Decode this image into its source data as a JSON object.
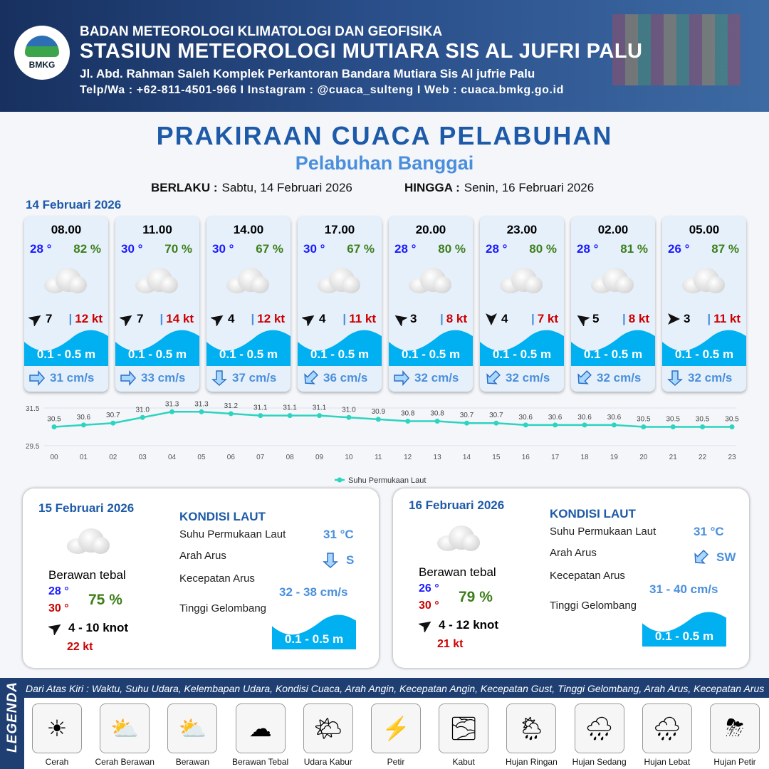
{
  "header": {
    "agency": "BADAN METEOROLOGI KLIMATOLOGI DAN GEOFISIKA",
    "station": "STASIUN METEOROLOGI MUTIARA SIS AL JUFRI PALU",
    "address": "Jl. Abd. Rahman Saleh Komplek Perkantoran Bandara Mutiara Sis Al jufrie Palu",
    "contact": "Telp/Wa : +62-811-4501-966  I  Instagram : @cuaca_sulteng  I  Web : cuaca.bmkg.go.id",
    "logo_text": "BMKG"
  },
  "title": "PRAKIRAAN CUACA PELABUHAN",
  "subtitle": "Pelabuhan Banggai",
  "validity": {
    "from_label": "BERLAKU :",
    "from": "Sabtu, 14 Februari 2026",
    "to_label": "HINGGA :",
    "to": "Senin, 16 Februari 2026"
  },
  "day1": {
    "date": "14 Februari 2026",
    "cards": [
      {
        "time": "08.00",
        "temp": "28 °",
        "rh": "82 %",
        "wind_dir_deg": -35,
        "wind": "7",
        "gust": "12 kt",
        "wave": "0.1 - 0.5 m",
        "cur_dir": "E",
        "cur_deg": 0,
        "current": "31 cm/s",
        "weather": "Berawan Tebal"
      },
      {
        "time": "11.00",
        "temp": "30 °",
        "rh": "70 %",
        "wind_dir_deg": -35,
        "wind": "7",
        "gust": "14 kt",
        "wave": "0.1 - 0.5 m",
        "cur_dir": "E",
        "cur_deg": 0,
        "current": "33 cm/s",
        "weather": "Berawan Tebal"
      },
      {
        "time": "14.00",
        "temp": "30 °",
        "rh": "67 %",
        "wind_dir_deg": -35,
        "wind": "4",
        "gust": "12 kt",
        "wave": "0.1 - 0.5 m",
        "cur_dir": "S",
        "cur_deg": 90,
        "current": "37 cm/s",
        "weather": "Berawan Tebal"
      },
      {
        "time": "17.00",
        "temp": "30 °",
        "rh": "67 %",
        "wind_dir_deg": -35,
        "wind": "4",
        "gust": "11 kt",
        "wave": "0.1 - 0.5 m",
        "cur_dir": "SW",
        "cur_deg": 135,
        "current": "36 cm/s",
        "weather": "Berawan Tebal"
      },
      {
        "time": "20.00",
        "temp": "28 °",
        "rh": "80 %",
        "wind_dir_deg": -145,
        "wind": "3",
        "gust": "8 kt",
        "wave": "0.1 - 0.5 m",
        "cur_dir": "E",
        "cur_deg": 0,
        "current": "32 cm/s",
        "weather": "Berawan Tebal"
      },
      {
        "time": "23.00",
        "temp": "28 °",
        "rh": "80 %",
        "wind_dir_deg": 90,
        "wind": "4",
        "gust": "7 kt",
        "wave": "0.1 - 0.5 m",
        "cur_dir": "SW",
        "cur_deg": 135,
        "current": "32 cm/s",
        "weather": "Berawan Tebal"
      },
      {
        "time": "02.00",
        "temp": "28 °",
        "rh": "81 %",
        "wind_dir_deg": -145,
        "wind": "5",
        "gust": "8 kt",
        "wave": "0.1 - 0.5 m",
        "cur_dir": "SW",
        "cur_deg": 135,
        "current": "32 cm/s",
        "weather": "Berawan Tebal"
      },
      {
        "time": "05.00",
        "temp": "26 °",
        "rh": "87 %",
        "wind_dir_deg": 0,
        "wind": "3",
        "gust": "11 kt",
        "wave": "0.1 - 0.5 m",
        "cur_dir": "S",
        "cur_deg": 90,
        "current": "32 cm/s",
        "weather": "Berawan Tebal"
      }
    ]
  },
  "chart_data": {
    "type": "line",
    "categories": [
      "00",
      "01",
      "02",
      "03",
      "04",
      "05",
      "06",
      "07",
      "08",
      "09",
      "10",
      "11",
      "12",
      "13",
      "14",
      "15",
      "16",
      "17",
      "18",
      "19",
      "20",
      "21",
      "22",
      "23"
    ],
    "series": [
      {
        "name": "Suhu Permukaan Laut",
        "values": [
          30.5,
          30.6,
          30.7,
          31.0,
          31.3,
          31.3,
          31.2,
          31.1,
          31.1,
          31.1,
          31.0,
          30.9,
          30.8,
          30.8,
          30.7,
          30.7,
          30.6,
          30.6,
          30.6,
          30.6,
          30.5,
          30.5,
          30.5,
          30.5
        ],
        "color": "#2dd4bf"
      }
    ],
    "yticks": [
      "31.5",
      "29.5"
    ],
    "ylim": [
      29.5,
      31.5
    ],
    "legend": "bottom",
    "grid": true
  },
  "panels": [
    {
      "date": "15 Februari 2026",
      "condition": "Berawan tebal",
      "tmin": "28 °",
      "tmax": "30 °",
      "rh": "75 %",
      "wind_dir_deg": -35,
      "wind": "4  - 10 knot",
      "gust": "22 kt",
      "kondisi_label": "KONDISI LAUT",
      "sst_label": "Suhu Permukaan Laut",
      "sst": "31 °C",
      "arah_label": "Arah Arus",
      "arah": "S",
      "arah_deg": 90,
      "kec_label": "Kecepatan Arus",
      "kec": "32  - 38 cm/s",
      "tinggi_label": "Tinggi Gelombang",
      "wave": "0.1 - 0.5 m"
    },
    {
      "date": "16 Februari 2026",
      "condition": "Berawan tebal",
      "tmin": "26 °",
      "tmax": "30 °",
      "rh": "79 %",
      "wind_dir_deg": -35,
      "wind": "4  - 12 knot",
      "gust": "21 kt",
      "kondisi_label": "KONDISI LAUT",
      "sst_label": "Suhu Permukaan Laut",
      "sst": "31 °C",
      "arah_label": "Arah Arus",
      "arah": "SW",
      "arah_deg": 135,
      "kec_label": "Kecepatan Arus",
      "kec": "31  - 40 cm/s",
      "tinggi_label": "Tinggi Gelombang",
      "wave": "0.1 - 0.5 m"
    }
  ],
  "legend": {
    "title": "LEGENDA",
    "description": "Dari Atas Kiri : Waktu, Suhu Udara, Kelembapan Udara, Kondisi Cuaca, Arah Angin, Kecepatan Angin, Kecepatan Gust, Tinggi Gelombang, Arah Arus, Kecepatan Arus",
    "items": [
      {
        "label": "Cerah",
        "icon": "☀"
      },
      {
        "label": "Cerah Berawan",
        "icon": "⛅"
      },
      {
        "label": "Berawan",
        "icon": "⛅"
      },
      {
        "label": "Berawan Tebal",
        "icon": "☁"
      },
      {
        "label": "Udara Kabur",
        "icon": "🌤"
      },
      {
        "label": "Petir",
        "icon": "⚡"
      },
      {
        "label": "Kabut",
        "icon": "🌫"
      },
      {
        "label": "Hujan Ringan",
        "icon": "🌦"
      },
      {
        "label": "Hujan Sedang",
        "icon": "🌧"
      },
      {
        "label": "Hujan Lebat",
        "icon": "🌧"
      },
      {
        "label": "Hujan Petir",
        "icon": "⛈"
      }
    ]
  },
  "colors": {
    "primary": "#1d5aa8",
    "wave": "#00b0f0",
    "temp": "#1a1aff",
    "rh": "#3d7f1a",
    "gust": "#c00000",
    "current": "#4a8fdc"
  }
}
